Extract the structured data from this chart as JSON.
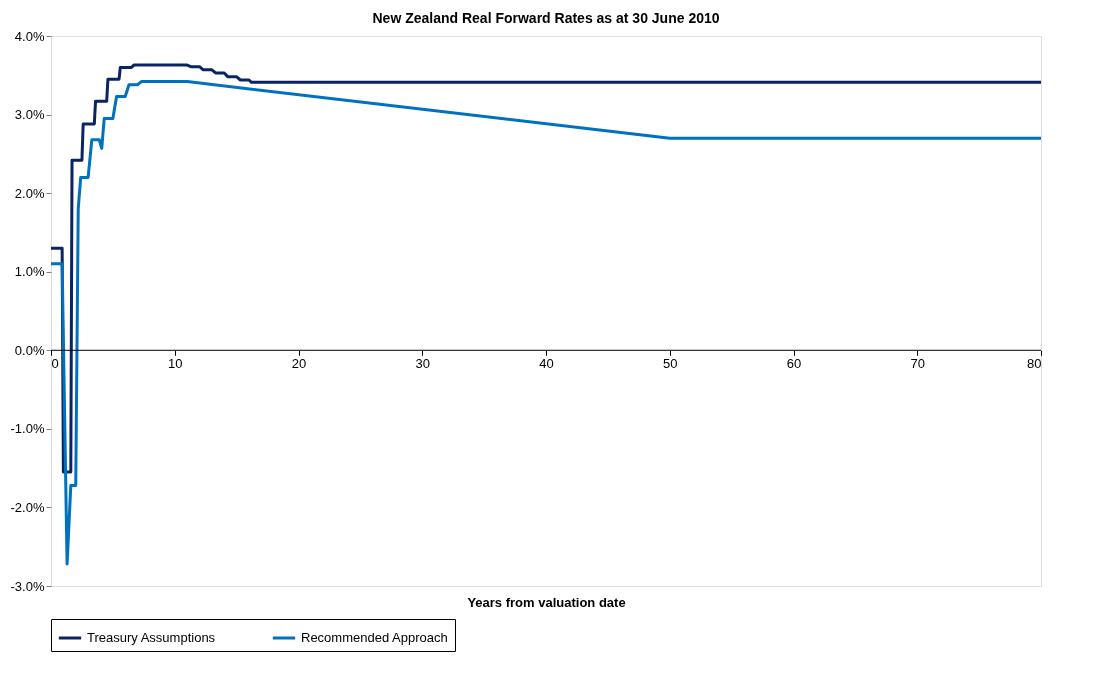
{
  "chart_data": {
    "type": "line",
    "title": "New Zealand Real Forward Rates as at 30 June 2010",
    "xlabel": "Years from valuation date",
    "xlim": [
      0,
      80
    ],
    "xticks": [
      0,
      10,
      20,
      30,
      40,
      50,
      60,
      70,
      80
    ],
    "ylim": [
      -3,
      4
    ],
    "yticks": [
      {
        "value": -3,
        "label": "-3.0%"
      },
      {
        "value": -2,
        "label": "-2.0%"
      },
      {
        "value": -1,
        "label": "-1.0%"
      },
      {
        "value": 0,
        "label": "0.0%"
      },
      {
        "value": 1,
        "label": "1.0%"
      },
      {
        "value": 2,
        "label": "2.0%"
      },
      {
        "value": 3,
        "label": "3.0%"
      },
      {
        "value": 4,
        "label": "4.0%"
      }
    ],
    "grid": false,
    "legend": "bottom",
    "marker": "none",
    "line_style": "solid",
    "series": [
      {
        "name": "Treasury Assumptions",
        "color": "#0a2463",
        "x": [
          0,
          0.9,
          1.0,
          1.6,
          1.7,
          2.5,
          2.6,
          3.5,
          3.6,
          4.5,
          4.6,
          5.5,
          5.6,
          6.5,
          6.7,
          11,
          11.3,
          12,
          12.3,
          13,
          13.3,
          14,
          14.3,
          15,
          15.3,
          16,
          16.2,
          80
        ],
        "values": [
          1.3,
          1.3,
          -1.55,
          -1.55,
          2.42,
          2.42,
          2.88,
          2.88,
          3.17,
          3.17,
          3.45,
          3.45,
          3.6,
          3.6,
          3.63,
          3.63,
          3.61,
          3.61,
          3.57,
          3.57,
          3.53,
          3.53,
          3.48,
          3.48,
          3.44,
          3.44,
          3.41,
          3.41
        ]
      },
      {
        "name": "Recommended Approach",
        "color": "#0070c0",
        "x": [
          0,
          0.9,
          1.3,
          1.6,
          2.0,
          2.2,
          2.4,
          3.0,
          3.3,
          3.9,
          4.1,
          4.3,
          5.0,
          5.3,
          6.0,
          6.3,
          7.0,
          7.3,
          11,
          50,
          80
        ],
        "values": [
          1.1,
          1.1,
          -2.72,
          -1.72,
          -1.72,
          1.8,
          2.2,
          2.2,
          2.68,
          2.68,
          2.57,
          2.95,
          2.95,
          3.23,
          3.23,
          3.38,
          3.38,
          3.42,
          3.42,
          2.7,
          2.7
        ]
      }
    ]
  }
}
